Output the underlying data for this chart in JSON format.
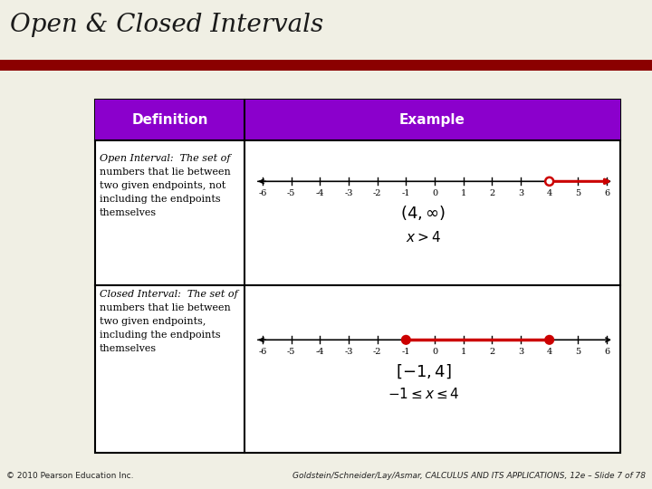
{
  "title": "Open & Closed Intervals",
  "title_bg": "#FAFAE8",
  "content_bg": "#F0EFE4",
  "red_bar_color": "#8B0000",
  "header_bg": "#8B00CC",
  "header_text_color": "#FFFFFF",
  "table_bg": "#FFFFFF",
  "def_col_label": "Definition",
  "ex_col_label": "Example",
  "number_line_ticks": [
    -6,
    -5,
    -4,
    -3,
    -2,
    -1,
    0,
    1,
    2,
    3,
    4,
    5,
    6
  ],
  "footer_left": "© 2010 Pearson Education Inc.",
  "footer_right": "Goldstein/Schneider/Lay/Asmar, CALCULUS AND ITS APPLICATIONS, 12e – Slide 7 of 78",
  "line_color": "#CC0000"
}
